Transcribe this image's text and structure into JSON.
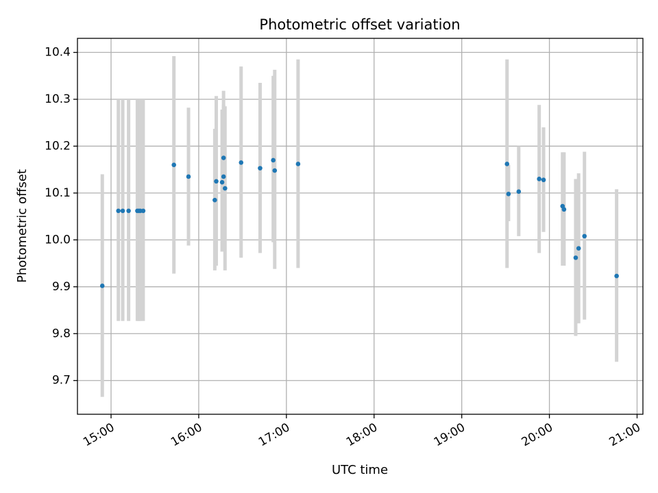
{
  "chart_data": {
    "type": "scatter",
    "title": "Photometric offset variation",
    "xlabel": "UTC time",
    "ylabel": "Photometric offset",
    "grid": true,
    "colors": {
      "points": "#1f77b4",
      "errorbars": "#d3d3d3",
      "grid": "#b0b0b0"
    },
    "x_ticks": [
      "15:00",
      "16:00",
      "17:00",
      "18:00",
      "19:00",
      "20:00",
      "21:00"
    ],
    "y_ticks": [
      "9.7",
      "9.8",
      "9.9",
      "10.0",
      "10.1",
      "10.2",
      "10.3",
      "10.4"
    ],
    "xlim": [
      "14:37",
      "21:04"
    ],
    "ylim": [
      9.628,
      10.43
    ],
    "points": [
      {
        "t": "14:54",
        "y": 9.902,
        "lo": 9.665,
        "hi": 10.14
      },
      {
        "t": "15:05",
        "y": 10.062,
        "lo": 9.827,
        "hi": 10.3
      },
      {
        "t": "15:08",
        "y": 10.062,
        "lo": 9.827,
        "hi": 10.3
      },
      {
        "t": "15:12",
        "y": 10.062,
        "lo": 9.827,
        "hi": 10.3
      },
      {
        "t": "15:18",
        "y": 10.062,
        "lo": 9.827,
        "hi": 10.3
      },
      {
        "t": "15:19",
        "y": 10.062,
        "lo": 9.827,
        "hi": 10.3
      },
      {
        "t": "15:20",
        "y": 10.062,
        "lo": 9.827,
        "hi": 10.3
      },
      {
        "t": "15:22",
        "y": 10.062,
        "lo": 9.827,
        "hi": 10.3
      },
      {
        "t": "15:43",
        "y": 10.16,
        "lo": 9.928,
        "hi": 10.392
      },
      {
        "t": "15:53",
        "y": 10.135,
        "lo": 9.988,
        "hi": 10.282
      },
      {
        "t": "16:11",
        "y": 10.085,
        "lo": 9.935,
        "hi": 10.237
      },
      {
        "t": "16:12",
        "y": 10.125,
        "lo": 9.945,
        "hi": 10.307
      },
      {
        "t": "16:16",
        "y": 10.123,
        "lo": 9.975,
        "hi": 10.278
      },
      {
        "t": "16:17",
        "y": 10.135,
        "lo": 9.975,
        "hi": 10.288
      },
      {
        "t": "16:17",
        "y": 10.175,
        "lo": 10.035,
        "hi": 10.318
      },
      {
        "t": "16:18",
        "y": 10.11,
        "lo": 9.935,
        "hi": 10.285
      },
      {
        "t": "16:29",
        "y": 10.165,
        "lo": 9.962,
        "hi": 10.37
      },
      {
        "t": "16:42",
        "y": 10.153,
        "lo": 9.972,
        "hi": 10.335
      },
      {
        "t": "16:51",
        "y": 10.17,
        "lo": 9.995,
        "hi": 10.35
      },
      {
        "t": "16:52",
        "y": 10.148,
        "lo": 9.938,
        "hi": 10.363
      },
      {
        "t": "17:08",
        "y": 10.162,
        "lo": 9.94,
        "hi": 10.385
      },
      {
        "t": "19:31",
        "y": 10.162,
        "lo": 9.94,
        "hi": 10.385
      },
      {
        "t": "19:32",
        "y": 10.098,
        "lo": 10.04,
        "hi": 10.16
      },
      {
        "t": "19:39",
        "y": 10.103,
        "lo": 10.008,
        "hi": 10.2
      },
      {
        "t": "19:53",
        "y": 10.13,
        "lo": 9.972,
        "hi": 10.288
      },
      {
        "t": "19:56",
        "y": 10.128,
        "lo": 10.017,
        "hi": 10.24
      },
      {
        "t": "20:09",
        "y": 10.072,
        "lo": 9.945,
        "hi": 10.187
      },
      {
        "t": "20:10",
        "y": 10.065,
        "lo": 9.945,
        "hi": 10.187
      },
      {
        "t": "20:18",
        "y": 9.962,
        "lo": 9.795,
        "hi": 10.13
      },
      {
        "t": "20:20",
        "y": 9.982,
        "lo": 9.822,
        "hi": 10.142
      },
      {
        "t": "20:24",
        "y": 10.008,
        "lo": 9.83,
        "hi": 10.188
      },
      {
        "t": "20:46",
        "y": 9.923,
        "lo": 9.74,
        "hi": 10.108
      }
    ]
  }
}
